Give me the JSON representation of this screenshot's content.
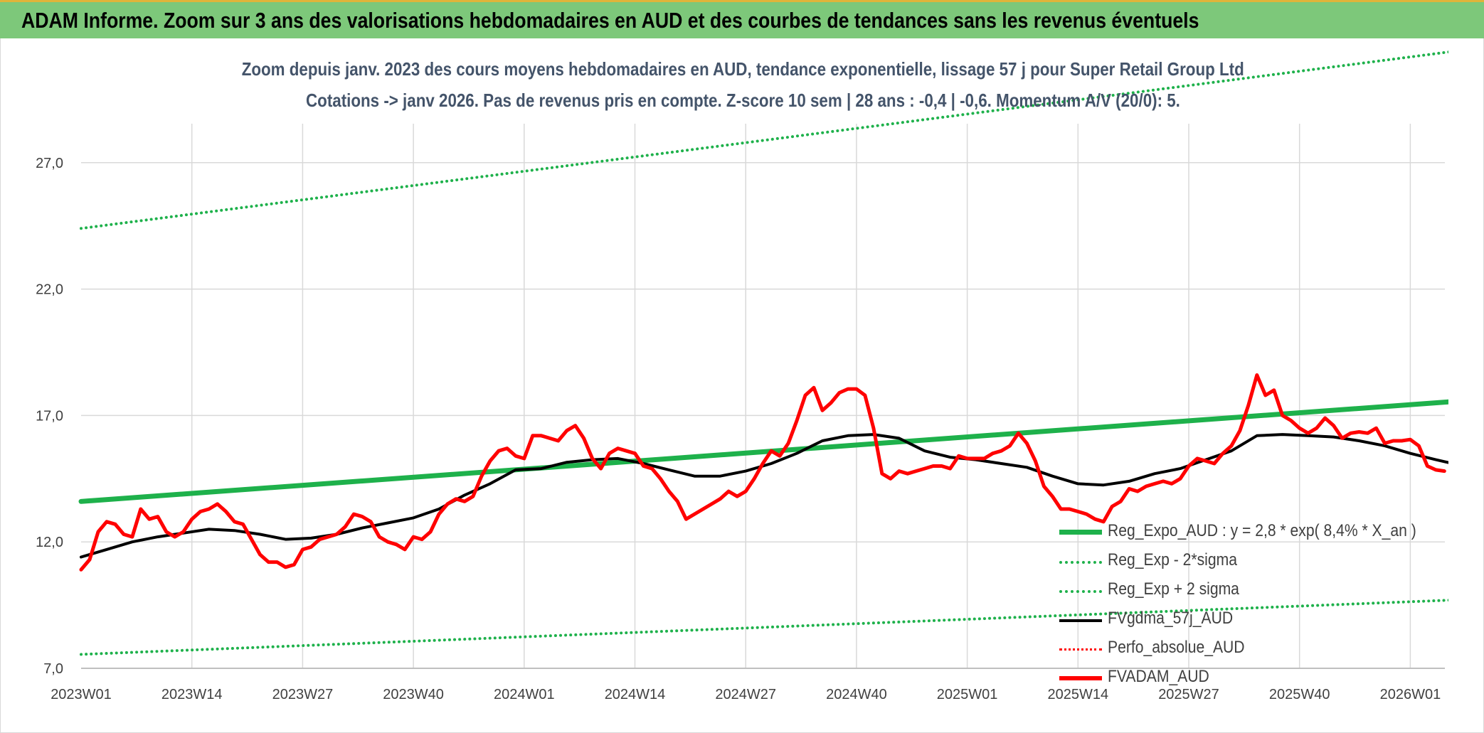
{
  "header": {
    "title": "ADAM Informe. Zoom sur 3 ans des valorisations hebdomadaires en AUD et des courbes de tendances sans les revenus éventuels"
  },
  "chart_data": {
    "type": "line",
    "title": "Zoom depuis janv. 2023 des cours moyens hebdomadaires en AUD, tendance exponentielle, lissage 57 j pour Super Retail Group Ltd",
    "subtitle": "Cotations -> janv 2026. Pas de revenus pris en compte. Z-score 10 sem | 28 ans : -0,4 | -0,6. Momentum A/V (20/0): 5.",
    "xlabel": "",
    "ylabel": "",
    "ylim": [
      7.0,
      29.5
    ],
    "yticks": [
      "7,0",
      "12,0",
      "17,0",
      "22,0",
      "27,0"
    ],
    "ytick_values": [
      7,
      12,
      17,
      22,
      27
    ],
    "x_tick_labels": [
      "2023W01",
      "2023W14",
      "2023W27",
      "2023W40",
      "2024W01",
      "2024W14",
      "2024W27",
      "2024W40",
      "2025W01",
      "2025W14",
      "2025W27",
      "2025W40",
      "2026W01"
    ],
    "x_tick_week_index": [
      0,
      13,
      26,
      39,
      52,
      65,
      78,
      91,
      104,
      117,
      130,
      143,
      156
    ],
    "weeks_total": 162,
    "grid": true,
    "legend_position": "bottom-right",
    "series": [
      {
        "name": "Reg_Expo_AUD : y = 2,8 * exp( 8,4% *  X_an )",
        "style": "solid-thick",
        "color": "#1eb14b",
        "start": 13.6,
        "end": 17.55
      },
      {
        "name": "Reg_Exp - 2*sigma",
        "style": "dotted",
        "color": "#1eb14b",
        "start": 7.55,
        "end": 9.7
      },
      {
        "name": "Reg_Exp + 2 sigma",
        "style": "dotted",
        "color": "#1eb14b",
        "start": 24.4,
        "end": 31.4
      },
      {
        "name": "FVgdma_57j_AUD",
        "style": "solid",
        "color": "#000000",
        "points": [
          [
            0,
            11.4
          ],
          [
            3,
            11.7
          ],
          [
            6,
            12.0
          ],
          [
            9,
            12.2
          ],
          [
            12,
            12.35
          ],
          [
            15,
            12.5
          ],
          [
            18,
            12.45
          ],
          [
            21,
            12.3
          ],
          [
            24,
            12.1
          ],
          [
            27,
            12.15
          ],
          [
            30,
            12.3
          ],
          [
            33,
            12.55
          ],
          [
            36,
            12.75
          ],
          [
            39,
            12.95
          ],
          [
            42,
            13.3
          ],
          [
            45,
            13.85
          ],
          [
            48,
            14.3
          ],
          [
            51,
            14.85
          ],
          [
            54,
            14.9
          ],
          [
            57,
            15.15
          ],
          [
            60,
            15.25
          ],
          [
            63,
            15.3
          ],
          [
            66,
            15.1
          ],
          [
            69,
            14.85
          ],
          [
            72,
            14.6
          ],
          [
            75,
            14.6
          ],
          [
            78,
            14.8
          ],
          [
            81,
            15.1
          ],
          [
            84,
            15.5
          ],
          [
            87,
            16.0
          ],
          [
            90,
            16.2
          ],
          [
            93,
            16.25
          ],
          [
            96,
            16.1
          ],
          [
            99,
            15.6
          ],
          [
            102,
            15.35
          ],
          [
            105,
            15.25
          ],
          [
            108,
            15.1
          ],
          [
            111,
            14.95
          ],
          [
            114,
            14.6
          ],
          [
            117,
            14.3
          ],
          [
            120,
            14.25
          ],
          [
            123,
            14.4
          ],
          [
            126,
            14.7
          ],
          [
            129,
            14.9
          ],
          [
            132,
            15.25
          ],
          [
            135,
            15.6
          ],
          [
            138,
            16.2
          ],
          [
            141,
            16.25
          ],
          [
            144,
            16.2
          ],
          [
            147,
            16.15
          ],
          [
            150,
            16.0
          ],
          [
            153,
            15.8
          ],
          [
            156,
            15.5
          ],
          [
            159,
            15.25
          ],
          [
            161,
            15.1
          ]
        ]
      },
      {
        "name": "Perfo_absolue_AUD",
        "style": "dotted",
        "color": "#ff0000",
        "points": []
      },
      {
        "name": "FVADAM_AUD",
        "style": "solid-thick",
        "color": "#ff0000",
        "points": [
          [
            0,
            10.9
          ],
          [
            1,
            11.3
          ],
          [
            2,
            12.4
          ],
          [
            3,
            12.8
          ],
          [
            4,
            12.7
          ],
          [
            5,
            12.3
          ],
          [
            6,
            12.2
          ],
          [
            7,
            13.3
          ],
          [
            8,
            12.9
          ],
          [
            9,
            13.0
          ],
          [
            10,
            12.4
          ],
          [
            11,
            12.2
          ],
          [
            12,
            12.4
          ],
          [
            13,
            12.9
          ],
          [
            14,
            13.2
          ],
          [
            15,
            13.3
          ],
          [
            16,
            13.5
          ],
          [
            17,
            13.2
          ],
          [
            18,
            12.8
          ],
          [
            19,
            12.7
          ],
          [
            20,
            12.1
          ],
          [
            21,
            11.5
          ],
          [
            22,
            11.2
          ],
          [
            23,
            11.2
          ],
          [
            24,
            11.0
          ],
          [
            25,
            11.1
          ],
          [
            26,
            11.7
          ],
          [
            27,
            11.8
          ],
          [
            28,
            12.1
          ],
          [
            29,
            12.2
          ],
          [
            30,
            12.3
          ],
          [
            31,
            12.6
          ],
          [
            32,
            13.1
          ],
          [
            33,
            13.0
          ],
          [
            34,
            12.8
          ],
          [
            35,
            12.2
          ],
          [
            36,
            12.0
          ],
          [
            37,
            11.9
          ],
          [
            38,
            11.7
          ],
          [
            39,
            12.2
          ],
          [
            40,
            12.1
          ],
          [
            41,
            12.4
          ],
          [
            42,
            13.1
          ],
          [
            43,
            13.5
          ],
          [
            44,
            13.7
          ],
          [
            45,
            13.6
          ],
          [
            46,
            13.8
          ],
          [
            47,
            14.6
          ],
          [
            48,
            15.2
          ],
          [
            49,
            15.6
          ],
          [
            50,
            15.7
          ],
          [
            51,
            15.4
          ],
          [
            52,
            15.3
          ],
          [
            53,
            16.2
          ],
          [
            54,
            16.2
          ],
          [
            55,
            16.1
          ],
          [
            56,
            16.0
          ],
          [
            57,
            16.4
          ],
          [
            58,
            16.6
          ],
          [
            59,
            16.1
          ],
          [
            60,
            15.3
          ],
          [
            61,
            14.9
          ],
          [
            62,
            15.5
          ],
          [
            63,
            15.7
          ],
          [
            64,
            15.6
          ],
          [
            65,
            15.5
          ],
          [
            66,
            15.0
          ],
          [
            67,
            14.9
          ],
          [
            68,
            14.5
          ],
          [
            69,
            14.0
          ],
          [
            70,
            13.6
          ],
          [
            71,
            12.9
          ],
          [
            72,
            13.1
          ],
          [
            73,
            13.3
          ],
          [
            74,
            13.5
          ],
          [
            75,
            13.7
          ],
          [
            76,
            14.0
          ],
          [
            77,
            13.8
          ],
          [
            78,
            14.0
          ],
          [
            79,
            14.5
          ],
          [
            80,
            15.1
          ],
          [
            81,
            15.6
          ],
          [
            82,
            15.4
          ],
          [
            83,
            15.9
          ],
          [
            84,
            16.8
          ],
          [
            85,
            17.8
          ],
          [
            86,
            18.1
          ],
          [
            87,
            17.2
          ],
          [
            88,
            17.5
          ],
          [
            89,
            17.9
          ],
          [
            90,
            18.05
          ],
          [
            91,
            18.05
          ],
          [
            92,
            17.8
          ],
          [
            93,
            16.5
          ],
          [
            94,
            14.7
          ],
          [
            95,
            14.5
          ],
          [
            96,
            14.8
          ],
          [
            97,
            14.7
          ],
          [
            98,
            14.8
          ],
          [
            99,
            14.9
          ],
          [
            100,
            15.0
          ],
          [
            101,
            15.0
          ],
          [
            102,
            14.9
          ],
          [
            103,
            15.4
          ],
          [
            104,
            15.3
          ],
          [
            105,
            15.3
          ],
          [
            106,
            15.3
          ],
          [
            107,
            15.5
          ],
          [
            108,
            15.6
          ],
          [
            109,
            15.8
          ],
          [
            110,
            16.3
          ],
          [
            111,
            15.9
          ],
          [
            112,
            15.2
          ],
          [
            113,
            14.2
          ],
          [
            114,
            13.8
          ],
          [
            115,
            13.3
          ],
          [
            116,
            13.3
          ],
          [
            117,
            13.2
          ],
          [
            118,
            13.1
          ],
          [
            119,
            12.9
          ],
          [
            120,
            12.8
          ],
          [
            121,
            13.4
          ],
          [
            122,
            13.6
          ],
          [
            123,
            14.1
          ],
          [
            124,
            14.0
          ],
          [
            125,
            14.2
          ],
          [
            126,
            14.3
          ],
          [
            127,
            14.4
          ],
          [
            128,
            14.3
          ],
          [
            129,
            14.5
          ],
          [
            130,
            15.0
          ],
          [
            131,
            15.3
          ],
          [
            132,
            15.2
          ],
          [
            133,
            15.1
          ],
          [
            134,
            15.5
          ],
          [
            135,
            15.8
          ],
          [
            136,
            16.4
          ],
          [
            137,
            17.4
          ],
          [
            138,
            18.6
          ],
          [
            139,
            17.8
          ],
          [
            140,
            18.0
          ],
          [
            141,
            17.0
          ],
          [
            142,
            16.8
          ],
          [
            143,
            16.5
          ],
          [
            144,
            16.3
          ],
          [
            145,
            16.5
          ],
          [
            146,
            16.9
          ],
          [
            147,
            16.6
          ],
          [
            148,
            16.1
          ],
          [
            149,
            16.3
          ],
          [
            150,
            16.35
          ],
          [
            151,
            16.3
          ],
          [
            152,
            16.5
          ],
          [
            153,
            15.9
          ],
          [
            154,
            16.0
          ],
          [
            155,
            16.0
          ],
          [
            156,
            16.05
          ],
          [
            157,
            15.8
          ],
          [
            158,
            15.0
          ],
          [
            159,
            14.85
          ],
          [
            160,
            14.8
          ]
        ]
      }
    ]
  }
}
